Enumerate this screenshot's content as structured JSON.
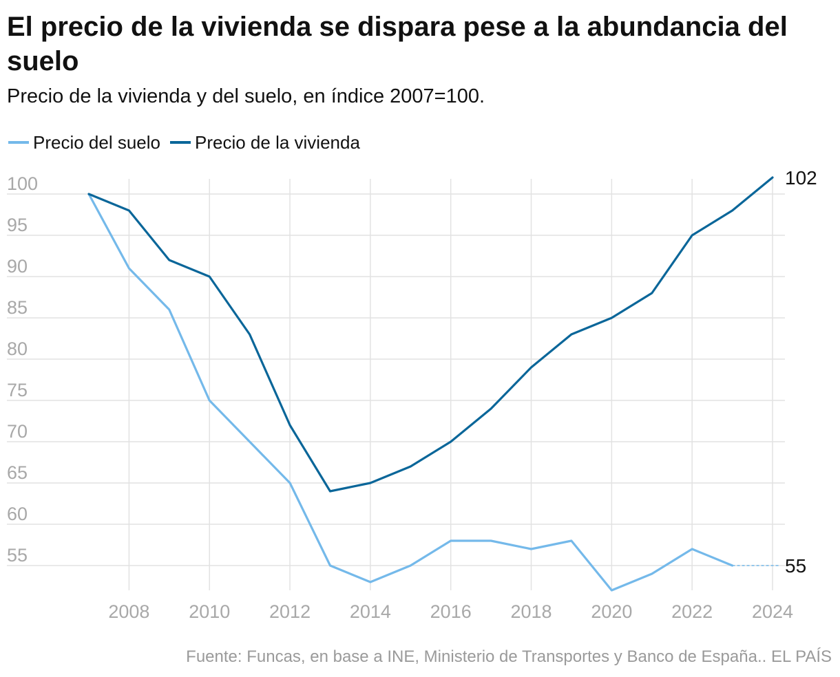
{
  "title": "El precio de la vivienda se dispara pese a la abundancia del suelo",
  "subtitle": "Precio de la vivienda y del suelo, en índice 2007=100.",
  "source": "Fuente: Funcas, en base a INE, Ministerio de Transportes y Banco de España.. EL PAÍS",
  "legend": [
    {
      "label": "Precio del suelo",
      "color": "#74b9ea"
    },
    {
      "label": "Precio de la vivienda",
      "color": "#0a6699"
    }
  ],
  "chart_data": {
    "type": "line",
    "title": "El precio de la vivienda se dispara pese a la abundancia del suelo",
    "xlabel": "",
    "ylabel": "",
    "x": [
      2007,
      2008,
      2009,
      2010,
      2011,
      2012,
      2013,
      2014,
      2015,
      2016,
      2017,
      2018,
      2019,
      2020,
      2021,
      2022,
      2023,
      2024
    ],
    "xlim": [
      2007,
      2024
    ],
    "ylim": [
      50,
      102
    ],
    "xticks": [
      "2008",
      "2010",
      "2012",
      "2014",
      "2016",
      "2018",
      "2020",
      "2022",
      "2024"
    ],
    "yticks": [
      "55",
      "60",
      "65",
      "70",
      "75",
      "80",
      "85",
      "90",
      "95",
      "100"
    ],
    "grid": true,
    "legend_position": "top-left",
    "series": [
      {
        "name": "Precio del suelo",
        "color": "#74b9ea",
        "values": [
          100,
          91,
          86,
          75,
          70,
          65,
          55,
          53,
          55,
          58,
          58,
          57,
          58,
          52,
          54,
          57,
          55,
          null
        ],
        "end_label": "55",
        "end_dashed_to": 2024,
        "end_value": 55
      },
      {
        "name": "Precio de la vivienda",
        "color": "#0a6699",
        "values": [
          100,
          98,
          92,
          90,
          83,
          72,
          64,
          65,
          67,
          70,
          74,
          79,
          83,
          85,
          88,
          95,
          98,
          102
        ],
        "end_label": "102"
      }
    ]
  }
}
